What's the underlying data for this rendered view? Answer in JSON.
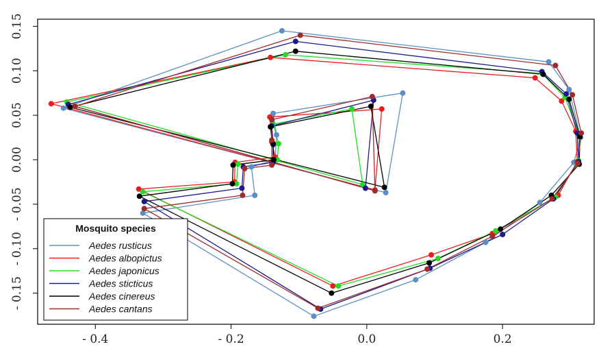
{
  "chart_data": {
    "type": "line",
    "title": "",
    "xlabel": "",
    "ylabel": "",
    "xlim": [
      -0.485,
      0.335
    ],
    "ylim": [
      -0.185,
      0.158
    ],
    "xticks": [
      -0.4,
      -0.2,
      0.0,
      0.2
    ],
    "xtick_labels": [
      "- 0.4",
      "- 0.2",
      "0.0",
      "0.2"
    ],
    "yticks": [
      -0.15,
      -0.1,
      -0.05,
      0.0,
      0.05,
      0.1,
      0.15
    ],
    "ytick_labels": [
      "- 0.15",
      "- 0.10",
      "- 0.05",
      "0.00",
      "0.05",
      "0.10",
      "0.15"
    ],
    "grid": false,
    "legend": {
      "title": "Mosquito species",
      "position": "bottom-left"
    },
    "series": [
      {
        "name": "Aedes rusticus",
        "color": "#5b8fc4",
        "points": [
          [
            -0.447,
            0.058
          ],
          [
            -0.125,
            0.145
          ],
          [
            0.268,
            0.11
          ],
          [
            0.298,
            0.079
          ],
          [
            0.315,
            0.025
          ],
          [
            0.305,
            -0.003
          ],
          [
            0.255,
            -0.048
          ],
          [
            0.175,
            -0.093
          ],
          [
            0.072,
            -0.135
          ],
          [
            -0.078,
            -0.176
          ],
          [
            -0.33,
            -0.06
          ],
          [
            -0.165,
            -0.04
          ],
          [
            -0.17,
            -0.008
          ],
          [
            -0.135,
            0.0
          ],
          [
            -0.133,
            0.028
          ],
          [
            -0.138,
            0.052
          ],
          [
            0.053,
            0.075
          ],
          [
            0.028,
            -0.037
          ]
        ]
      },
      {
        "name": "Aedes albopictus",
        "color": "#ee1c1c",
        "points": [
          [
            -0.465,
            0.063
          ],
          [
            -0.142,
            0.115
          ],
          [
            0.248,
            0.092
          ],
          [
            0.287,
            0.066
          ],
          [
            0.308,
            0.032
          ],
          [
            0.31,
            -0.002
          ],
          [
            0.282,
            -0.04
          ],
          [
            0.185,
            -0.083
          ],
          [
            0.095,
            -0.107
          ],
          [
            -0.05,
            -0.142
          ],
          [
            -0.336,
            -0.033
          ],
          [
            -0.195,
            -0.025
          ],
          [
            -0.194,
            -0.003
          ],
          [
            -0.135,
            0.003
          ],
          [
            -0.14,
            0.02
          ],
          [
            -0.143,
            0.048
          ],
          [
            0.022,
            0.057
          ],
          [
            0.012,
            -0.034
          ]
        ]
      },
      {
        "name": "Aedes japonicus",
        "color": "#22dd22",
        "points": [
          [
            -0.442,
            0.065
          ],
          [
            -0.12,
            0.118
          ],
          [
            0.258,
            0.097
          ],
          [
            0.292,
            0.07
          ],
          [
            0.313,
            0.028
          ],
          [
            0.312,
            -0.001
          ],
          [
            0.278,
            -0.042
          ],
          [
            0.19,
            -0.08
          ],
          [
            0.105,
            -0.111
          ],
          [
            -0.042,
            -0.142
          ],
          [
            -0.33,
            -0.036
          ],
          [
            -0.192,
            -0.027
          ],
          [
            -0.19,
            -0.005
          ],
          [
            -0.132,
            0.0
          ],
          [
            -0.13,
            0.018
          ],
          [
            -0.138,
            0.04
          ],
          [
            -0.022,
            0.057
          ],
          [
            -0.006,
            -0.028
          ]
        ]
      },
      {
        "name": "Aedes sticticus",
        "color": "#1a1a8c",
        "points": [
          [
            -0.44,
            0.062
          ],
          [
            -0.105,
            0.133
          ],
          [
            0.258,
            0.099
          ],
          [
            0.294,
            0.074
          ],
          [
            0.31,
            0.03
          ],
          [
            0.312,
            -0.002
          ],
          [
            0.275,
            -0.044
          ],
          [
            0.2,
            -0.084
          ],
          [
            0.093,
            -0.122
          ],
          [
            -0.068,
            -0.168
          ],
          [
            -0.328,
            -0.047
          ],
          [
            -0.184,
            -0.032
          ],
          [
            -0.182,
            -0.008
          ],
          [
            -0.138,
            -0.003
          ],
          [
            -0.138,
            0.017
          ],
          [
            -0.14,
            0.038
          ],
          [
            0.01,
            0.067
          ],
          [
            -0.002,
            -0.032
          ]
        ]
      },
      {
        "name": "Aedes cinereus",
        "color": "#000000",
        "points": [
          [
            -0.437,
            0.059
          ],
          [
            -0.105,
            0.122
          ],
          [
            0.26,
            0.096
          ],
          [
            0.298,
            0.068
          ],
          [
            0.314,
            0.026
          ],
          [
            0.313,
            -0.005
          ],
          [
            0.272,
            -0.04
          ],
          [
            0.197,
            -0.078
          ],
          [
            0.092,
            -0.116
          ],
          [
            -0.052,
            -0.15
          ],
          [
            -0.335,
            -0.041
          ],
          [
            -0.198,
            -0.027
          ],
          [
            -0.197,
            -0.006
          ],
          [
            -0.137,
            0.0
          ],
          [
            -0.138,
            0.018
          ],
          [
            -0.142,
            0.037
          ],
          [
            0.006,
            0.06
          ],
          [
            0.026,
            -0.031
          ]
        ]
      },
      {
        "name": "Aedes cantans",
        "color": "#a02a2a",
        "points": [
          [
            -0.43,
            0.06
          ],
          [
            -0.098,
            0.14
          ],
          [
            0.278,
            0.106
          ],
          [
            0.303,
            0.073
          ],
          [
            0.316,
            0.03
          ],
          [
            0.311,
            -0.004
          ],
          [
            0.273,
            -0.044
          ],
          [
            0.185,
            -0.086
          ],
          [
            0.089,
            -0.123
          ],
          [
            -0.072,
            -0.167
          ],
          [
            -0.328,
            -0.055
          ],
          [
            -0.183,
            -0.04
          ],
          [
            -0.18,
            -0.01
          ],
          [
            -0.14,
            -0.006
          ],
          [
            -0.14,
            0.022
          ],
          [
            -0.14,
            0.045
          ],
          [
            0.008,
            0.071
          ],
          [
            0.012,
            -0.035
          ]
        ]
      }
    ]
  }
}
